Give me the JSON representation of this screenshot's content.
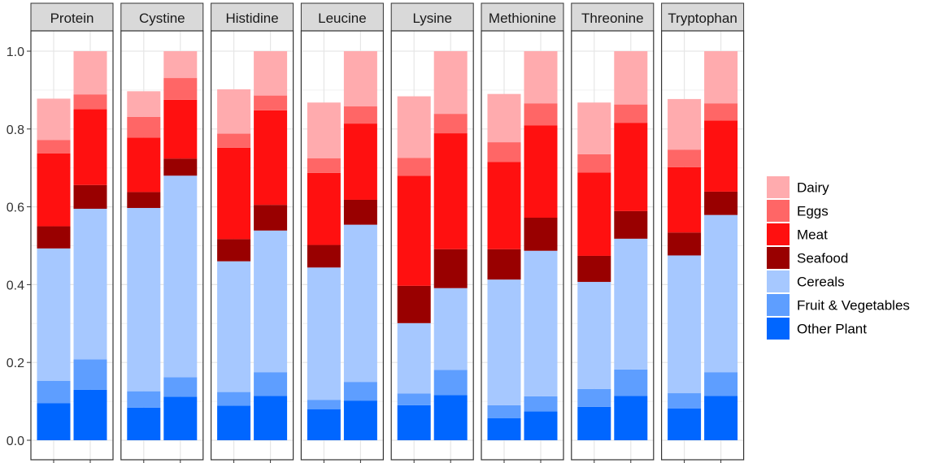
{
  "chart_data": {
    "type": "bar",
    "stacked": true,
    "facets": [
      "Protein",
      "Cystine",
      "Histidine",
      "Leucine",
      "Lysine",
      "Methionine",
      "Threonine",
      "Tryptophan"
    ],
    "bars_per_facet": 2,
    "ylim": [
      0,
      1.0
    ],
    "yticks": [
      0.0,
      0.2,
      0.4,
      0.6,
      0.8,
      1.0
    ],
    "ytick_labels": [
      "0.0",
      "0.2",
      "0.4",
      "0.6",
      "0.8",
      "1.0"
    ],
    "grid": true,
    "legend_position": "right",
    "categories": [
      "Dairy",
      "Eggs",
      "Meat",
      "Seafood",
      "Cereals",
      "Fruit & Vegetables",
      "Other Plant"
    ],
    "colors": {
      "Dairy": "#FFABAE",
      "Eggs": "#FF6666",
      "Meat": "#FF1010",
      "Seafood": "#990000",
      "Cereals": "#A6C8FF",
      "Fruit & Vegetables": "#5E9EFF",
      "Other Plant": "#0066FF"
    },
    "stack_order_bottom_to_top": [
      "Other Plant",
      "Fruit & Vegetables",
      "Cereals",
      "Seafood",
      "Meat",
      "Eggs",
      "Dairy"
    ],
    "bars": {
      "Protein": [
        {
          "Other Plant": 0.095,
          "Fruit & Vegetables": 0.058,
          "Cereals": 0.34,
          "Seafood": 0.057,
          "Meat": 0.187,
          "Eggs": 0.035,
          "Dairy": 0.106
        },
        {
          "Other Plant": 0.13,
          "Fruit & Vegetables": 0.078,
          "Cereals": 0.387,
          "Seafood": 0.061,
          "Meat": 0.195,
          "Eggs": 0.038,
          "Dairy": 0.111
        }
      ],
      "Cystine": [
        {
          "Other Plant": 0.084,
          "Fruit & Vegetables": 0.042,
          "Cereals": 0.471,
          "Seafood": 0.041,
          "Meat": 0.14,
          "Eggs": 0.053,
          "Dairy": 0.066
        },
        {
          "Other Plant": 0.112,
          "Fruit & Vegetables": 0.05,
          "Cereals": 0.518,
          "Seafood": 0.044,
          "Meat": 0.151,
          "Eggs": 0.056,
          "Dairy": 0.069
        }
      ],
      "Histidine": [
        {
          "Other Plant": 0.089,
          "Fruit & Vegetables": 0.035,
          "Cereals": 0.336,
          "Seafood": 0.057,
          "Meat": 0.235,
          "Eggs": 0.036,
          "Dairy": 0.114
        },
        {
          "Other Plant": 0.114,
          "Fruit & Vegetables": 0.061,
          "Cereals": 0.364,
          "Seafood": 0.066,
          "Meat": 0.243,
          "Eggs": 0.038,
          "Dairy": 0.114
        }
      ],
      "Leucine": [
        {
          "Other Plant": 0.08,
          "Fruit & Vegetables": 0.024,
          "Cereals": 0.34,
          "Seafood": 0.058,
          "Meat": 0.185,
          "Eggs": 0.038,
          "Dairy": 0.143
        },
        {
          "Other Plant": 0.102,
          "Fruit & Vegetables": 0.048,
          "Cereals": 0.404,
          "Seafood": 0.064,
          "Meat": 0.196,
          "Eggs": 0.044,
          "Dairy": 0.142
        }
      ],
      "Lysine": [
        {
          "Other Plant": 0.09,
          "Fruit & Vegetables": 0.03,
          "Cereals": 0.181,
          "Seafood": 0.096,
          "Meat": 0.283,
          "Eggs": 0.046,
          "Dairy": 0.158
        },
        {
          "Other Plant": 0.116,
          "Fruit & Vegetables": 0.065,
          "Cereals": 0.21,
          "Seafood": 0.1,
          "Meat": 0.298,
          "Eggs": 0.05,
          "Dairy": 0.161
        }
      ],
      "Methionine": [
        {
          "Other Plant": 0.057,
          "Fruit & Vegetables": 0.033,
          "Cereals": 0.323,
          "Seafood": 0.078,
          "Meat": 0.224,
          "Eggs": 0.051,
          "Dairy": 0.124
        },
        {
          "Other Plant": 0.074,
          "Fruit & Vegetables": 0.039,
          "Cereals": 0.374,
          "Seafood": 0.085,
          "Meat": 0.237,
          "Eggs": 0.057,
          "Dairy": 0.134
        }
      ],
      "Threonine": [
        {
          "Other Plant": 0.086,
          "Fruit & Vegetables": 0.046,
          "Cereals": 0.275,
          "Seafood": 0.067,
          "Meat": 0.214,
          "Eggs": 0.047,
          "Dairy": 0.133
        },
        {
          "Other Plant": 0.114,
          "Fruit & Vegetables": 0.068,
          "Cereals": 0.336,
          "Seafood": 0.071,
          "Meat": 0.227,
          "Eggs": 0.047,
          "Dairy": 0.137
        }
      ],
      "Tryptophan": [
        {
          "Other Plant": 0.082,
          "Fruit & Vegetables": 0.039,
          "Cereals": 0.354,
          "Seafood": 0.059,
          "Meat": 0.168,
          "Eggs": 0.045,
          "Dairy": 0.13
        },
        {
          "Other Plant": 0.114,
          "Fruit & Vegetables": 0.061,
          "Cereals": 0.404,
          "Seafood": 0.06,
          "Meat": 0.183,
          "Eggs": 0.044,
          "Dairy": 0.134
        }
      ]
    }
  }
}
